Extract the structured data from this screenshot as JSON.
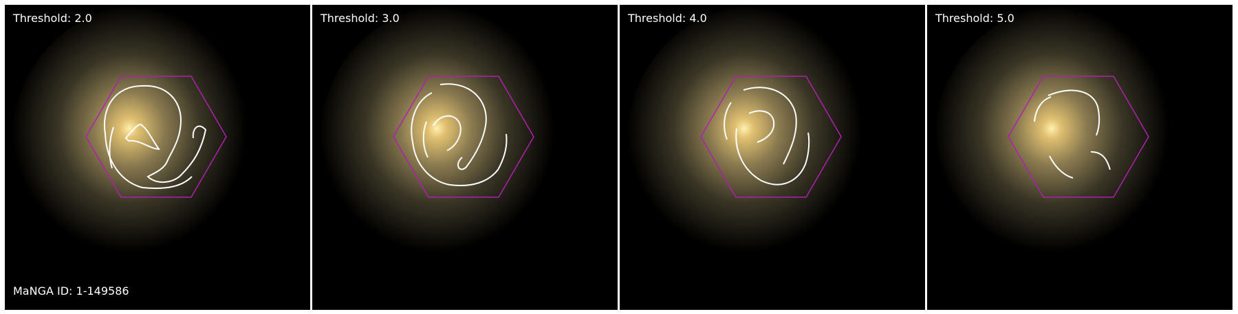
{
  "panels": [
    {
      "threshold_label": "Threshold: 2.0"
    },
    {
      "threshold_label": "Threshold: 3.0"
    },
    {
      "threshold_label": "Threshold: 4.0"
    },
    {
      "threshold_label": "Threshold: 5.0"
    }
  ],
  "manga_id_label": "MaNGA ID: 1-149586",
  "colors": {
    "hexagon": "#b020b0",
    "contour": "#ffffff",
    "background": "#000000",
    "galaxy_core": "#ffe8a0",
    "galaxy_halo": "#6a6040"
  }
}
